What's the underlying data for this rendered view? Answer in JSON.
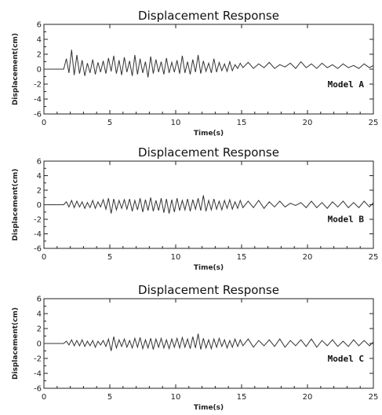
{
  "chart_data": [
    {
      "type": "line",
      "title": "Displacement Response",
      "xlabel": "Time(s)",
      "ylabel": "Displacement(cm)",
      "annotation": "Model A",
      "xlim": [
        0,
        25
      ],
      "ylim": [
        -6,
        6
      ],
      "xticks": [
        0,
        5,
        10,
        15,
        20,
        25
      ],
      "yticks": [
        6,
        4,
        2,
        0,
        -2,
        -4,
        -6
      ],
      "series": [
        {
          "x": [
            0,
            1.5,
            1.7,
            1.9,
            2.1,
            2.3,
            2.5,
            2.7,
            2.9,
            3.1,
            3.3,
            3.5,
            3.7,
            3.9,
            4.1,
            4.3,
            4.5,
            4.7,
            4.9,
            5.1,
            5.3,
            5.5,
            5.7,
            5.9,
            6.1,
            6.3,
            6.5,
            6.7,
            6.9,
            7.1,
            7.3,
            7.5,
            7.7,
            7.9,
            8.1,
            8.3,
            8.5,
            8.7,
            8.9,
            9.1,
            9.3,
            9.5,
            9.7,
            9.9,
            10.1,
            10.3,
            10.5,
            10.7,
            10.9,
            11.1,
            11.3,
            11.5,
            11.7,
            11.9,
            12.1,
            12.3,
            12.5,
            12.7,
            12.9,
            13.1,
            13.3,
            13.5,
            13.7,
            13.9,
            14.1,
            14.3,
            14.5,
            14.7,
            14.9,
            15.1,
            15.5,
            15.9,
            16.3,
            16.7,
            17.1,
            17.5,
            17.9,
            18.3,
            18.7,
            19.1,
            19.5,
            19.9,
            20.3,
            20.7,
            21.1,
            21.5,
            21.9,
            22.3,
            22.7,
            23.1,
            23.5,
            23.9,
            24.3,
            24.7,
            25
          ],
          "y": [
            0,
            0,
            1.4,
            -0.5,
            2.6,
            -0.8,
            1.9,
            -0.6,
            1.2,
            -0.9,
            0.8,
            -0.5,
            1.3,
            -0.7,
            0.9,
            -0.4,
            1.1,
            -0.6,
            1.5,
            -0.3,
            1.8,
            -0.6,
            1.2,
            -0.8,
            1.6,
            -0.4,
            1.1,
            -0.9,
            1.9,
            -0.7,
            1.4,
            -0.5,
            1.0,
            -1.1,
            1.7,
            -0.6,
            1.3,
            -0.4,
            1.0,
            -0.7,
            1.5,
            -0.5,
            0.9,
            -0.4,
            1.2,
            -0.6,
            1.8,
            -0.5,
            1.0,
            -0.7,
            1.3,
            -0.4,
            1.9,
            -0.6,
            1.1,
            -0.3,
            0.8,
            -0.5,
            1.4,
            -0.4,
            0.9,
            -0.2,
            0.7,
            -0.3,
            1.0,
            -0.2,
            0.6,
            0.1,
            0.8,
            0.2,
            0.9,
            0.1,
            0.7,
            0.2,
            0.9,
            0.1,
            0.6,
            0.3,
            0.8,
            0.1,
            1.0,
            0.2,
            0.7,
            0.1,
            0.8,
            0.2,
            0.6,
            0.1,
            0.7,
            0.2,
            0.5,
            0.1,
            0.7,
            0.2,
            0.5
          ]
        }
      ]
    },
    {
      "type": "line",
      "title": "Displacement Response",
      "xlabel": "Time(s)",
      "ylabel": "Displacement(cm)",
      "annotation": "Model B",
      "xlim": [
        0,
        25
      ],
      "ylim": [
        -6,
        6
      ],
      "xticks": [
        0,
        5,
        10,
        15,
        20,
        25
      ],
      "yticks": [
        6,
        4,
        2,
        0,
        -2,
        -4,
        -6
      ],
      "series": [
        {
          "x": [
            0,
            1.5,
            1.7,
            1.9,
            2.1,
            2.3,
            2.5,
            2.7,
            2.9,
            3.1,
            3.3,
            3.5,
            3.7,
            3.9,
            4.1,
            4.3,
            4.5,
            4.7,
            4.9,
            5.1,
            5.3,
            5.5,
            5.7,
            5.9,
            6.1,
            6.3,
            6.5,
            6.7,
            6.9,
            7.1,
            7.3,
            7.5,
            7.7,
            7.9,
            8.1,
            8.3,
            8.5,
            8.7,
            8.9,
            9.1,
            9.3,
            9.5,
            9.7,
            9.9,
            10.1,
            10.3,
            10.5,
            10.7,
            10.9,
            11.1,
            11.3,
            11.5,
            11.7,
            11.9,
            12.1,
            12.3,
            12.5,
            12.7,
            12.9,
            13.1,
            13.3,
            13.5,
            13.7,
            13.9,
            14.1,
            14.3,
            14.5,
            14.7,
            14.9,
            15.1,
            15.5,
            15.9,
            16.3,
            16.7,
            17.1,
            17.5,
            17.9,
            18.3,
            18.7,
            19.1,
            19.5,
            19.9,
            20.3,
            20.7,
            21.1,
            21.5,
            21.9,
            22.3,
            22.7,
            23.1,
            23.5,
            23.9,
            24.3,
            24.7,
            25
          ],
          "y": [
            0,
            0,
            0.4,
            -0.3,
            0.6,
            -0.4,
            0.5,
            -0.3,
            0.4,
            -0.5,
            0.3,
            -0.4,
            0.6,
            -0.5,
            0.4,
            -0.3,
            0.7,
            -0.6,
            0.9,
            -1.2,
            0.8,
            -0.7,
            0.6,
            -0.5,
            0.7,
            -0.6,
            0.8,
            -0.9,
            0.6,
            -0.7,
            0.9,
            -1.0,
            0.7,
            -0.8,
            1.0,
            -0.9,
            0.6,
            -0.8,
            0.9,
            -1.1,
            0.8,
            -1.2,
            0.7,
            -1.0,
            0.9,
            -0.8,
            0.6,
            -0.7,
            0.8,
            -0.9,
            0.7,
            -0.6,
            0.9,
            -0.8,
            1.3,
            -0.9,
            0.6,
            -0.7,
            0.8,
            -0.6,
            0.5,
            -0.7,
            0.6,
            -0.5,
            0.7,
            -0.6,
            0.4,
            -0.5,
            0.6,
            -0.4,
            0.5,
            -0.4,
            0.6,
            -0.5,
            0.4,
            -0.3,
            0.5,
            -0.3,
            0.2,
            -0.1,
            0.3,
            -0.4,
            0.5,
            -0.4,
            0.3,
            -0.5,
            0.4,
            -0.3,
            0.5,
            -0.4,
            0.3,
            -0.4,
            0.5,
            -0.3,
            0.3
          ]
        }
      ]
    },
    {
      "type": "line",
      "title": "Displacement Response",
      "xlabel": "Time(s)",
      "ylabel": "Displacement(cm)",
      "annotation": "Model C",
      "xlim": [
        0,
        25
      ],
      "ylim": [
        -6,
        6
      ],
      "xticks": [
        0,
        5,
        10,
        15,
        20,
        25
      ],
      "yticks": [
        6,
        4,
        2,
        0,
        -2,
        -4,
        -6
      ],
      "series": [
        {
          "x": [
            0,
            1.5,
            1.7,
            1.9,
            2.1,
            2.3,
            2.5,
            2.7,
            2.9,
            3.1,
            3.3,
            3.5,
            3.7,
            3.9,
            4.1,
            4.3,
            4.5,
            4.7,
            4.9,
            5.1,
            5.3,
            5.5,
            5.7,
            5.9,
            6.1,
            6.3,
            6.5,
            6.7,
            6.9,
            7.1,
            7.3,
            7.5,
            7.7,
            7.9,
            8.1,
            8.3,
            8.5,
            8.7,
            8.9,
            9.1,
            9.3,
            9.5,
            9.7,
            9.9,
            10.1,
            10.3,
            10.5,
            10.7,
            10.9,
            11.1,
            11.3,
            11.5,
            11.7,
            11.9,
            12.1,
            12.3,
            12.5,
            12.7,
            12.9,
            13.1,
            13.3,
            13.5,
            13.7,
            13.9,
            14.1,
            14.3,
            14.5,
            14.7,
            14.9,
            15.1,
            15.5,
            15.9,
            16.3,
            16.7,
            17.1,
            17.5,
            17.9,
            18.3,
            18.7,
            19.1,
            19.5,
            19.9,
            20.3,
            20.7,
            21.1,
            21.5,
            21.9,
            22.3,
            22.7,
            23.1,
            23.5,
            23.9,
            24.3,
            24.7,
            25
          ],
          "y": [
            0,
            0,
            0.3,
            -0.2,
            0.5,
            -0.3,
            0.4,
            -0.3,
            0.5,
            -0.4,
            0.3,
            -0.3,
            0.4,
            -0.5,
            0.3,
            -0.2,
            0.4,
            -0.4,
            0.6,
            -1.0,
            0.9,
            -0.6,
            0.5,
            -0.4,
            0.6,
            -0.5,
            0.4,
            -0.6,
            0.7,
            -0.5,
            0.8,
            -0.7,
            0.5,
            -0.6,
            0.7,
            -0.8,
            0.6,
            -0.5,
            0.7,
            -0.6,
            0.5,
            -0.7,
            0.6,
            -0.5,
            0.7,
            -0.6,
            0.8,
            -0.5,
            0.6,
            -0.7,
            0.9,
            -0.6,
            1.3,
            -0.8,
            0.7,
            -0.6,
            0.5,
            -0.7,
            0.6,
            -0.5,
            0.7,
            -0.4,
            0.5,
            -0.6,
            0.4,
            -0.5,
            0.6,
            -0.4,
            0.5,
            -0.3,
            0.6,
            -0.5,
            0.4,
            -0.3,
            0.5,
            -0.4,
            0.6,
            -0.5,
            0.4,
            -0.3,
            0.5,
            -0.4,
            0.6,
            -0.5,
            0.4,
            -0.3,
            0.5,
            -0.4,
            0.3,
            -0.4,
            0.5,
            -0.3,
            0.4,
            -0.3,
            0.2
          ]
        }
      ]
    }
  ]
}
